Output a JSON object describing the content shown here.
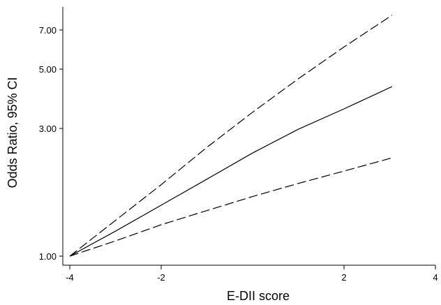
{
  "chart_data": {
    "type": "line",
    "title": "",
    "xlabel": "E-DII score",
    "ylabel": "Odds Ratio, 95% CI",
    "x_ticks": [
      -4,
      -2,
      2,
      4
    ],
    "y_ticks": [
      1.0,
      3.0,
      5.0,
      7.0
    ],
    "y_tick_labels": [
      "1.00",
      "3.00",
      "5.00",
      "7.00"
    ],
    "xlim": [
      -4,
      4
    ],
    "ylim": [
      1.0,
      7.0
    ],
    "y_scale": "log",
    "grid": false,
    "series": [
      {
        "style": "dashed",
        "x": [
          -4,
          -3,
          -2,
          -1,
          0,
          1,
          2,
          3.05
        ],
        "y": [
          1.0,
          1.36,
          1.85,
          2.55,
          3.45,
          4.6,
          6.05,
          7.95
        ]
      },
      {
        "style": "solid",
        "x": [
          -4,
          -3,
          -2,
          -1,
          0,
          1,
          2,
          3.05
        ],
        "y": [
          1.0,
          1.24,
          1.55,
          1.94,
          2.43,
          2.98,
          3.55,
          4.3
        ]
      },
      {
        "style": "dashed",
        "x": [
          -4,
          -3,
          -2,
          -1,
          0,
          1,
          2,
          3.05
        ],
        "y": [
          1.0,
          1.14,
          1.31,
          1.48,
          1.67,
          1.87,
          2.08,
          2.33
        ]
      }
    ]
  }
}
